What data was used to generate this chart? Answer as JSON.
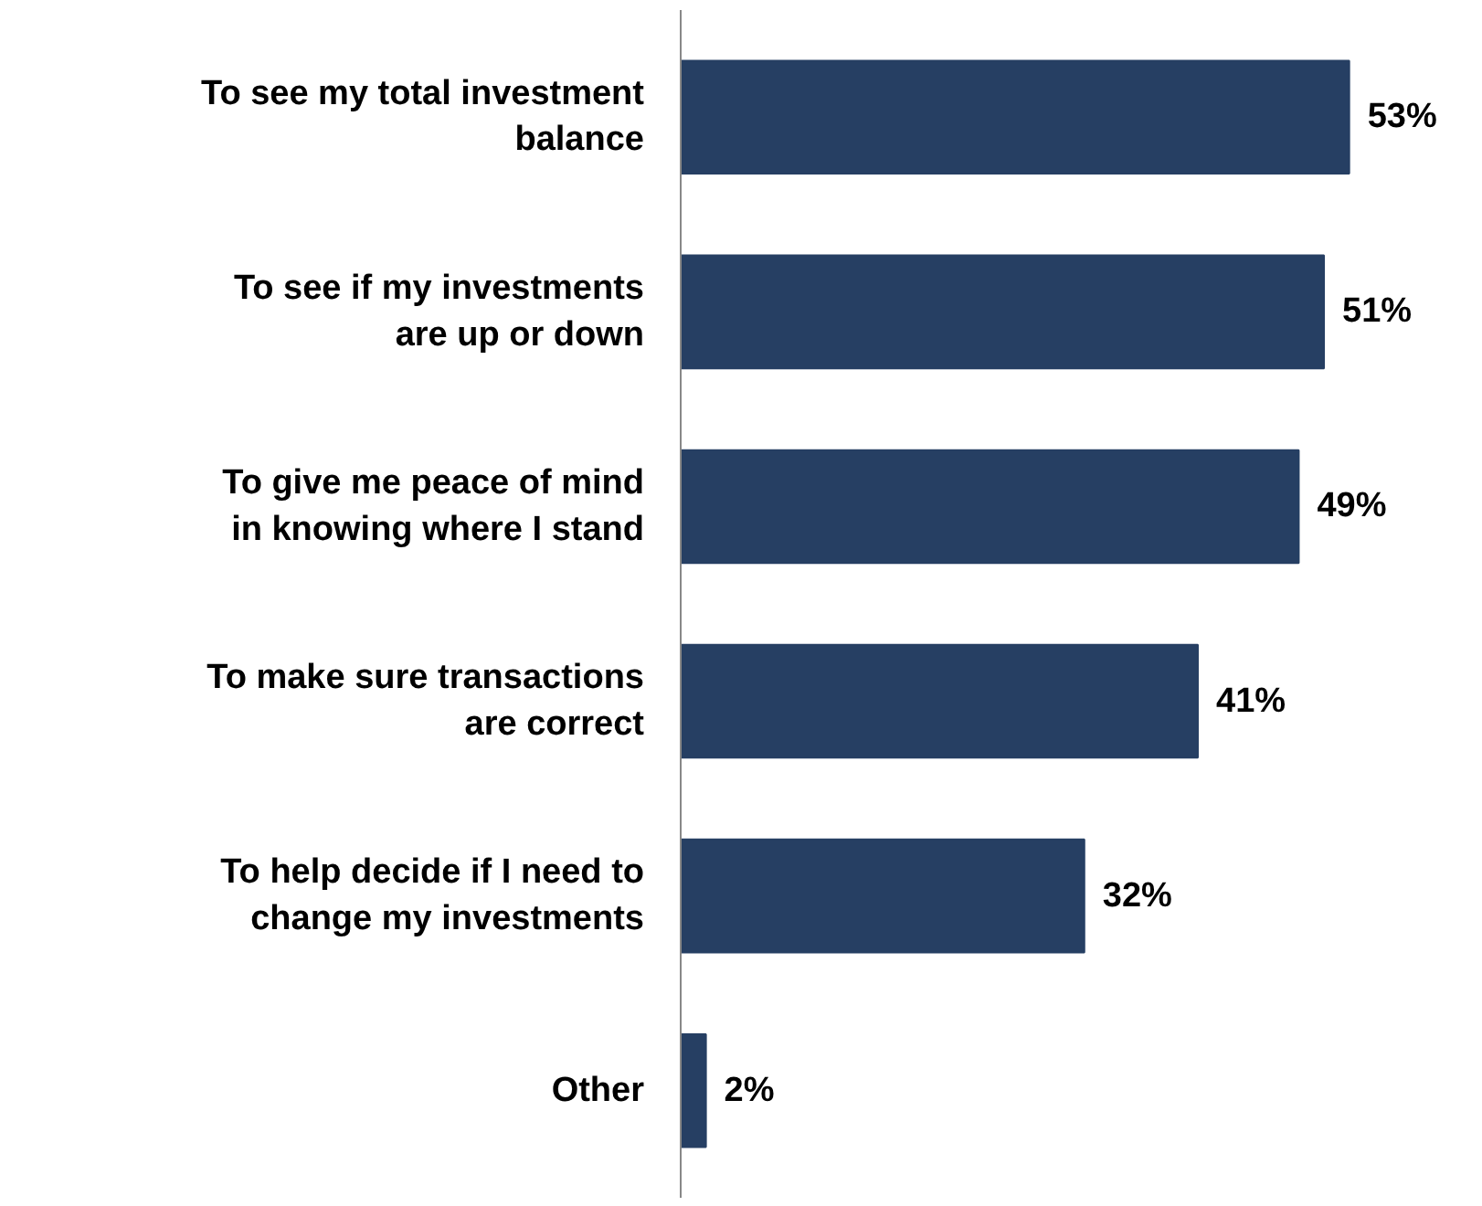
{
  "chart_data": {
    "type": "bar",
    "orientation": "horizontal",
    "categories": [
      "To see my total investment\nbalance",
      "To see if my investments\nare up or down",
      "To give me peace of mind\nin knowing where I stand",
      "To make sure transactions\nare correct",
      "To help decide if I need to\nchange my investments",
      "Other"
    ],
    "values": [
      53,
      51,
      49,
      41,
      32,
      2
    ],
    "value_labels": [
      "53%",
      "51%",
      "49%",
      "41%",
      "32%",
      "2%"
    ],
    "color": "#263f63",
    "grid": false
  }
}
